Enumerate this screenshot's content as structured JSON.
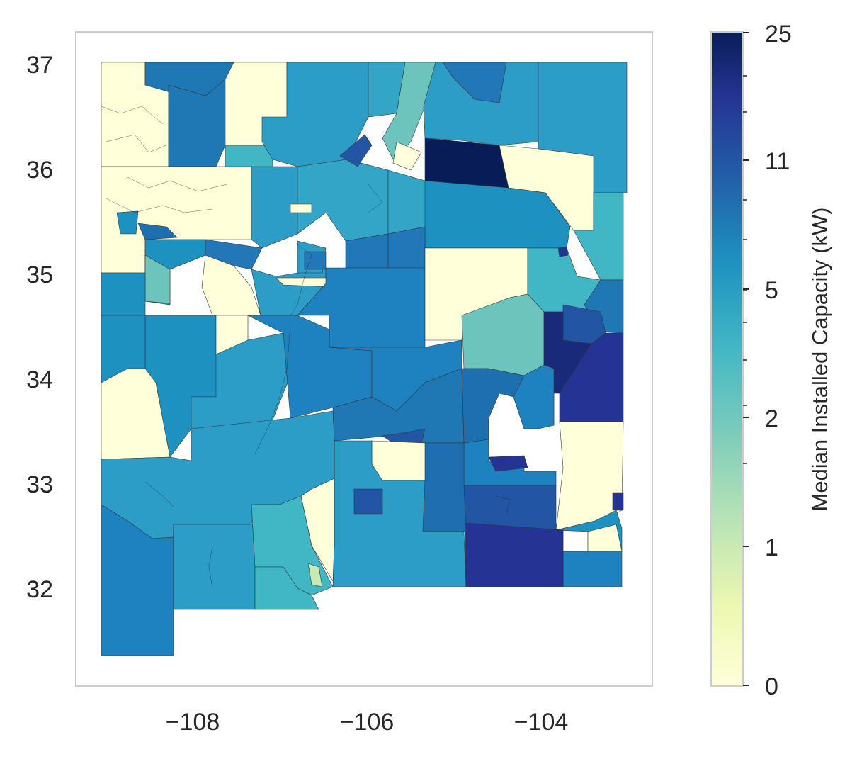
{
  "map": {
    "x_tick_labels": [
      "−108",
      "−106",
      "−104"
    ],
    "y_tick_labels": [
      "37",
      "36",
      "35",
      "34",
      "33",
      "32"
    ],
    "palette": [
      "#ffffd9",
      "#edf8b1",
      "#c7e9b4",
      "#7fcdbb",
      "#41b6c4",
      "#1d91c0",
      "#225ea8",
      "#253494",
      "#081d58"
    ]
  },
  "colorbar": {
    "title": "Median Installed Capacity (kW)",
    "tick_labels": [
      "0",
      "1",
      "2",
      "5",
      "11",
      "25"
    ]
  },
  "chart_data": {
    "type": "heatmap",
    "xlim": [
      -109.4,
      -102.5
    ],
    "ylim": [
      31.1,
      37.3
    ],
    "x_ticks": [
      -108,
      -106,
      -104
    ],
    "y_ticks": [
      32,
      33,
      34,
      35,
      36,
      37
    ],
    "colorbar_ticks": [
      0,
      1,
      2,
      5,
      11,
      25
    ],
    "grid": false
  }
}
